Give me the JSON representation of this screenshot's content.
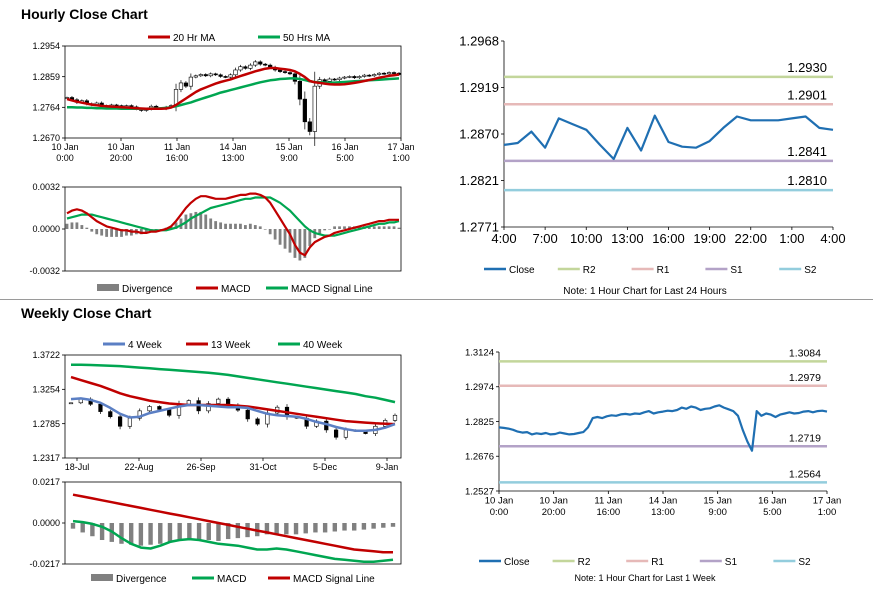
{
  "titles": {
    "hourly": "Hourly Close Chart",
    "weekly": "Weekly Close Chart"
  },
  "colors": {
    "ma_red": "#c00000",
    "ma_green": "#00a651",
    "ma_blue": "#5b7fc4",
    "close_blue": "#1f6fb2",
    "r2": "#c3d69b",
    "r1": "#e6b9b8",
    "s1": "#b3a2c7",
    "s2": "#93cddd",
    "divergence": "#808080"
  },
  "chart_data": [
    {
      "id": "hourly_price",
      "type": "candlestick",
      "legend": [
        "20 Hr MA",
        "50 Hrs MA"
      ],
      "y_ticks": [
        "1.2954",
        "1.2859",
        "1.2764",
        "1.2670"
      ],
      "ylim": [
        1.267,
        1.2954
      ],
      "x_ticks": [
        [
          "10 Jan",
          "0:00"
        ],
        [
          "10 Jan",
          "20:00"
        ],
        [
          "11 Jan",
          "16:00"
        ],
        [
          "14 Jan",
          "13:00"
        ],
        [
          "15 Jan",
          "9:00"
        ],
        [
          "16 Jan",
          "5:00"
        ],
        [
          "17 Jan",
          "1:00"
        ]
      ],
      "close": [
        1.2795,
        1.2788,
        1.278,
        1.2785,
        1.2776,
        1.2772,
        1.2778,
        1.277,
        1.2768,
        1.2772,
        1.277,
        1.2768,
        1.277,
        1.2766,
        1.276,
        1.2755,
        1.276,
        1.2768,
        1.2762,
        1.276,
        1.2765,
        1.277,
        1.282,
        1.284,
        1.283,
        1.2858,
        1.2862,
        1.2866,
        1.2862,
        1.2868,
        1.2865,
        1.286,
        1.2858,
        1.2865,
        1.288,
        1.289,
        1.2885,
        1.2895,
        1.2905,
        1.2898,
        1.2895,
        1.2888,
        1.288,
        1.2875,
        1.2872,
        1.2868,
        1.2845,
        1.279,
        1.272,
        1.269,
        1.283,
        1.285,
        1.2845,
        1.2852,
        1.285,
        1.2855,
        1.2858,
        1.286,
        1.2856,
        1.286,
        1.2864,
        1.2862,
        1.2866,
        1.287,
        1.2868,
        1.2872,
        1.287,
        1.2866
      ],
      "ma20": [
        1.279,
        1.2786,
        1.2782,
        1.2779,
        1.2776,
        1.2773,
        1.2771,
        1.2769,
        1.2768,
        1.2767,
        1.2766,
        1.2765,
        1.2764,
        1.2763,
        1.2762,
        1.2761,
        1.276,
        1.276,
        1.276,
        1.276,
        1.2761,
        1.2764,
        1.2772,
        1.2782,
        1.2792,
        1.2802,
        1.2812,
        1.282,
        1.2826,
        1.2832,
        1.2838,
        1.2843,
        1.2847,
        1.2851,
        1.2856,
        1.2861,
        1.2866,
        1.2871,
        1.2876,
        1.288,
        1.2884,
        1.2886,
        1.2886,
        1.2884,
        1.2882,
        1.288,
        1.2876,
        1.2868,
        1.2858,
        1.2846,
        1.2842,
        1.284,
        1.2838,
        1.2836,
        1.2835,
        1.2835,
        1.2836,
        1.2838,
        1.284,
        1.2843,
        1.2846,
        1.2849,
        1.2852,
        1.2856,
        1.2859,
        1.2862,
        1.2864,
        1.2866
      ],
      "ma50": [
        1.2765,
        1.2765,
        1.2764,
        1.2764,
        1.2763,
        1.2763,
        1.2762,
        1.2762,
        1.2761,
        1.2761,
        1.2761,
        1.276,
        1.276,
        1.276,
        1.276,
        1.276,
        1.276,
        1.2761,
        1.2761,
        1.2762,
        1.2763,
        1.2765,
        1.2768,
        1.2772,
        1.2776,
        1.278,
        1.2785,
        1.279,
        1.2795,
        1.28,
        1.2805,
        1.281,
        1.2814,
        1.2818,
        1.2822,
        1.2826,
        1.283,
        1.2834,
        1.2838,
        1.2842,
        1.2845,
        1.2848,
        1.285,
        1.2852,
        1.2853,
        1.2854,
        1.2854,
        1.2852,
        1.2849,
        1.2845,
        1.2843,
        1.2842,
        1.2841,
        1.2841,
        1.2841,
        1.2842,
        1.2843,
        1.2844,
        1.2845,
        1.2846,
        1.2847,
        1.2848,
        1.2849,
        1.285,
        1.2851,
        1.2852,
        1.2853,
        1.2854
      ]
    },
    {
      "id": "hourly_macd",
      "type": "bar+line",
      "legend": [
        "Divergence",
        "MACD",
        "MACD Signal Line"
      ],
      "y_ticks": [
        "0.0032",
        "0.0000",
        "-0.0032"
      ],
      "ylim": [
        -0.0032,
        0.0032
      ],
      "macd": [
        0.0012,
        0.0014,
        0.0015,
        0.0014,
        0.0012,
        0.0009,
        0.0006,
        0.0004,
        0.0002,
        0.0001,
        0.0,
        -0.0001,
        -0.0001,
        -0.0002,
        -0.0002,
        -0.0003,
        -0.0003,
        -0.0002,
        -0.0002,
        -0.0001,
        0.0,
        0.0002,
        0.0006,
        0.0011,
        0.0016,
        0.002,
        0.0023,
        0.0025,
        0.0025,
        0.0024,
        0.0023,
        0.0023,
        0.0023,
        0.0024,
        0.0025,
        0.0026,
        0.0026,
        0.0027,
        0.0027,
        0.0026,
        0.0024,
        0.002,
        0.0014,
        0.0008,
        0.0002,
        -0.0004,
        -0.0012,
        -0.0018,
        -0.002,
        -0.0014,
        -0.001,
        -0.0008,
        -0.0006,
        -0.0005,
        -0.0003,
        -0.0002,
        -0.0001,
        0.0,
        0.0001,
        0.0002,
        0.0003,
        0.0004,
        0.0005,
        0.0006,
        0.0006,
        0.0007,
        0.0007,
        0.0007
      ],
      "signal": [
        0.0008,
        0.0009,
        0.001,
        0.0011,
        0.0011,
        0.0011,
        0.001,
        0.0009,
        0.0008,
        0.0007,
        0.0006,
        0.0005,
        0.0004,
        0.0003,
        0.0002,
        0.0001,
        0.0,
        -0.0001,
        -0.0001,
        -0.0001,
        -0.0001,
        0.0,
        0.0001,
        0.0003,
        0.0005,
        0.0008,
        0.001,
        0.0012,
        0.0014,
        0.0016,
        0.0017,
        0.0018,
        0.0019,
        0.002,
        0.0021,
        0.0022,
        0.0023,
        0.0023,
        0.0024,
        0.0024,
        0.0024,
        0.0024,
        0.0022,
        0.002,
        0.0017,
        0.0014,
        0.001,
        0.0006,
        0.0002,
        -0.0001,
        -0.0003,
        -0.0004,
        -0.0005,
        -0.0005,
        -0.0005,
        -0.0004,
        -0.0003,
        -0.0002,
        -0.0001,
        0.0,
        0.0001,
        0.0002,
        0.0003,
        0.0004,
        0.0004,
        0.0005,
        0.0005,
        0.0006
      ]
    },
    {
      "id": "hourly_pivot",
      "type": "line",
      "legend": [
        "Close",
        "R2",
        "R1",
        "S1",
        "S2"
      ],
      "y_ticks": [
        "1.2968",
        "1.2919",
        "1.2870",
        "1.2821",
        "1.2771"
      ],
      "ylim": [
        1.2771,
        1.2968
      ],
      "x_ticks": [
        "4:00",
        "7:00",
        "10:00",
        "13:00",
        "16:00",
        "19:00",
        "22:00",
        "1:00",
        "4:00"
      ],
      "close": [
        1.2858,
        1.286,
        1.2872,
        1.2855,
        1.2886,
        1.288,
        1.2874,
        1.2858,
        1.2843,
        1.2876,
        1.2852,
        1.2889,
        1.2861,
        1.2856,
        1.2855,
        1.2862,
        1.2876,
        1.2888,
        1.2884,
        1.2884,
        1.2884,
        1.2886,
        1.2888,
        1.2876,
        1.2874
      ],
      "levels": {
        "R2": 1.293,
        "R1": 1.2901,
        "S1": 1.2841,
        "S2": 1.281
      },
      "level_labels": [
        "1.2930",
        "1.2901",
        "1.2841",
        "1.2810"
      ],
      "note": "Note: 1 Hour Chart for Last 24 Hours"
    },
    {
      "id": "weekly_price",
      "type": "candlestick",
      "legend": [
        "4 Week",
        "13 Week",
        "40 Week"
      ],
      "y_ticks": [
        "1.3722",
        "1.3254",
        "1.2785",
        "1.2317"
      ],
      "ylim": [
        1.2317,
        1.3722
      ],
      "x_ticks": [
        "18-Jul",
        "22-Aug",
        "26-Sep",
        "31-Oct",
        "5-Dec",
        "9-Jan"
      ],
      "close": [
        1.307,
        1.312,
        1.305,
        1.295,
        1.288,
        1.275,
        1.286,
        1.296,
        1.302,
        1.298,
        1.29,
        1.305,
        1.31,
        1.296,
        1.306,
        1.312,
        1.304,
        1.297,
        1.285,
        1.278,
        1.293,
        1.301,
        1.288,
        1.286,
        1.275,
        1.282,
        1.27,
        1.26,
        1.27,
        1.268,
        1.265,
        1.275,
        1.283,
        1.29
      ],
      "wk4": [
        1.312,
        1.313,
        1.311,
        1.307,
        1.3,
        1.292,
        1.287,
        1.288,
        1.293,
        1.296,
        1.299,
        1.302,
        1.304,
        1.304,
        1.303,
        1.302,
        1.301,
        1.301,
        1.3,
        1.296,
        1.292,
        1.29,
        1.289,
        1.288,
        1.285,
        1.281,
        1.278,
        1.274,
        1.271,
        1.269,
        1.269,
        1.27,
        1.273,
        1.278
      ],
      "wk13": [
        1.342,
        1.338,
        1.334,
        1.33,
        1.325,
        1.32,
        1.316,
        1.313,
        1.31,
        1.308,
        1.306,
        1.305,
        1.304,
        1.304,
        1.304,
        1.304,
        1.304,
        1.303,
        1.302,
        1.3,
        1.298,
        1.296,
        1.294,
        1.292,
        1.29,
        1.288,
        1.286,
        1.284,
        1.282,
        1.281,
        1.28,
        1.279,
        1.2785,
        1.278
      ],
      "wk40": [
        1.359,
        1.359,
        1.3585,
        1.358,
        1.3575,
        1.357,
        1.356,
        1.355,
        1.354,
        1.353,
        1.352,
        1.351,
        1.35,
        1.349,
        1.348,
        1.3465,
        1.345,
        1.343,
        1.341,
        1.339,
        1.337,
        1.335,
        1.333,
        1.331,
        1.329,
        1.327,
        1.325,
        1.323,
        1.321,
        1.319,
        1.316,
        1.314,
        1.311,
        1.308
      ]
    },
    {
      "id": "weekly_macd",
      "type": "bar+line",
      "legend": [
        "Divergence",
        "MACD",
        "MACD Signal Line"
      ],
      "y_ticks": [
        "0.0217",
        "0.0000",
        "-0.0217"
      ],
      "ylim": [
        -0.0217,
        0.0217
      ],
      "macd": [
        0.001,
        0.0005,
        -0.0005,
        -0.002,
        -0.0045,
        -0.008,
        -0.011,
        -0.013,
        -0.0135,
        -0.012,
        -0.01,
        -0.009,
        -0.0085,
        -0.009,
        -0.01,
        -0.011,
        -0.0115,
        -0.012,
        -0.013,
        -0.014,
        -0.014,
        -0.0135,
        -0.014,
        -0.015,
        -0.016,
        -0.017,
        -0.018,
        -0.019,
        -0.0195,
        -0.02,
        -0.0205,
        -0.0205,
        -0.02,
        -0.0195
      ],
      "signal": [
        0.015,
        0.014,
        0.013,
        0.012,
        0.011,
        0.01,
        0.009,
        0.008,
        0.007,
        0.006,
        0.005,
        0.004,
        0.003,
        0.002,
        0.001,
        0.0,
        -0.001,
        -0.002,
        -0.003,
        -0.004,
        -0.005,
        -0.006,
        -0.007,
        -0.008,
        -0.009,
        -0.01,
        -0.011,
        -0.012,
        -0.013,
        -0.014,
        -0.0145,
        -0.015,
        -0.0155,
        -0.0155
      ],
      "divergence": [
        -0.003,
        -0.005,
        -0.007,
        -0.009,
        -0.01,
        -0.011,
        -0.0115,
        -0.012,
        -0.0115,
        -0.011,
        -0.01,
        -0.009,
        -0.0085,
        -0.009,
        -0.009,
        -0.0095,
        -0.0085,
        -0.008,
        -0.0075,
        -0.007,
        -0.006,
        -0.006,
        -0.006,
        -0.006,
        -0.0055,
        -0.005,
        -0.005,
        -0.0045,
        -0.004,
        -0.004,
        -0.0035,
        -0.003,
        -0.0025,
        -0.002
      ]
    },
    {
      "id": "weekly_pivot",
      "type": "line",
      "legend": [
        "Close",
        "R2",
        "R1",
        "S1",
        "S2"
      ],
      "y_ticks": [
        "1.3124",
        "1.2974",
        "1.2825",
        "1.2676",
        "1.2527"
      ],
      "ylim": [
        1.2527,
        1.3124
      ],
      "x_ticks": [
        [
          "10 Jan",
          "0:00"
        ],
        [
          "10 Jan",
          "20:00"
        ],
        [
          "11 Jan",
          "16:00"
        ],
        [
          "14 Jan",
          "13:00"
        ],
        [
          "15 Jan",
          "9:00"
        ],
        [
          "16 Jan",
          "5:00"
        ],
        [
          "17 Jan",
          "1:00"
        ]
      ],
      "close": [
        1.28,
        1.2798,
        1.2795,
        1.279,
        1.2782,
        1.2778,
        1.278,
        1.277,
        1.2775,
        1.2772,
        1.2776,
        1.277,
        1.2772,
        1.2778,
        1.2774,
        1.277,
        1.2772,
        1.2776,
        1.278,
        1.28,
        1.284,
        1.2845,
        1.284,
        1.2848,
        1.2852,
        1.285,
        1.2856,
        1.2858,
        1.2855,
        1.286,
        1.2858,
        1.2865,
        1.287,
        1.286,
        1.2865,
        1.2868,
        1.2872,
        1.287,
        1.2875,
        1.2885,
        1.288,
        1.289,
        1.2885,
        1.2875,
        1.288,
        1.2882,
        1.289,
        1.2895,
        1.2885,
        1.2878,
        1.287,
        1.285,
        1.279,
        1.274,
        1.27,
        1.287,
        1.285,
        1.286,
        1.2855,
        1.2845,
        1.2855,
        1.286,
        1.2865,
        1.286,
        1.2862,
        1.2868,
        1.287,
        1.2865,
        1.287,
        1.2872,
        1.2868
      ],
      "levels": {
        "R2": 1.3084,
        "R1": 1.2979,
        "S1": 1.2719,
        "S2": 1.2564
      },
      "level_labels": [
        "1.3084",
        "1.2979",
        "1.2719",
        "1.2564"
      ],
      "note": "Note: 1 Hour Chart for Last 1 Week"
    }
  ]
}
